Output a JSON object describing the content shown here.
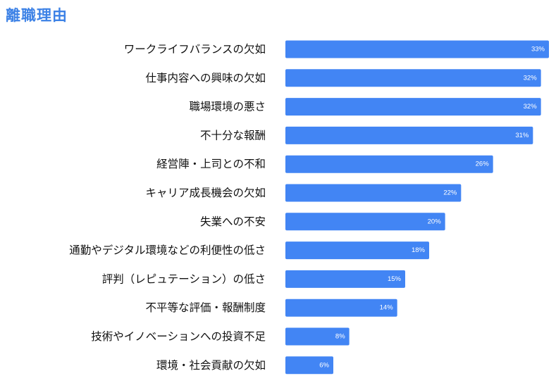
{
  "chart_data": {
    "type": "bar",
    "orientation": "horizontal",
    "title": "離職理由",
    "categories": [
      "ワークライフバランスの欠如",
      "仕事内容への興味の欠如",
      "職場環境の悪さ",
      "不十分な報酬",
      "経営陣・上司との不和",
      "キャリア成長機会の欠如",
      "失業への不安",
      "通勤やデジタル環境などの利便性の低さ",
      "評判（レピュテーション）の低さ",
      "不平等な評価・報酬制度",
      "技術やイノベーションへの投資不足",
      "環境・社会貢献の欠如"
    ],
    "values": [
      33,
      32,
      32,
      31,
      26,
      22,
      20,
      18,
      15,
      14,
      8,
      6
    ],
    "data_labels": [
      "33%",
      "32%",
      "32%",
      "31%",
      "26%",
      "22%",
      "20%",
      "18%",
      "15%",
      "14%",
      "8%",
      "6%"
    ],
    "xlim": [
      0,
      33
    ],
    "grid": false,
    "legend": "none",
    "bar_color": "#4285f4",
    "title_color": "#3d82e6"
  }
}
